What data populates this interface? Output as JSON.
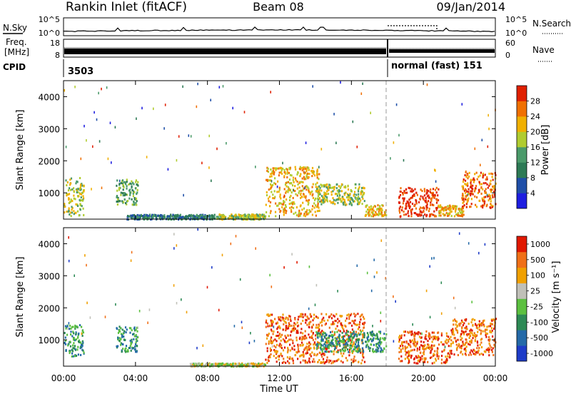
{
  "header": {
    "station": "Rankin Inlet (fitACF)",
    "beam": "Beam 08",
    "date": "09/Jan/2014"
  },
  "noise_panel": {
    "left_label": "N.Sky",
    "left_ticks": [
      "10^5",
      "10^0"
    ],
    "right_label": "N.Search",
    "right_ticks": [
      "10^5",
      "10^0"
    ]
  },
  "freq_panel": {
    "left_label_line1": "Freq.",
    "left_label_line2": "[MHz]",
    "left_ticks": [
      "18",
      "8"
    ],
    "right_label": "Nave",
    "right_ticks": [
      "60",
      "0"
    ]
  },
  "cpid_panel": {
    "label": "CPID",
    "segments": [
      {
        "text": "3503"
      },
      {
        "text": "normal (fast) 151"
      }
    ]
  },
  "x_axis": {
    "label": "Time UT",
    "tick_labels": [
      "00:00",
      "04:00",
      "08:00",
      "12:00",
      "16:00",
      "20:00",
      "00:00"
    ],
    "tick_hours": [
      0,
      4,
      8,
      12,
      16,
      20,
      24
    ]
  },
  "colors": {
    "power": [
      "#1e1ee0",
      "#1f4fa8",
      "#2d7a55",
      "#4a9a6a",
      "#b0cc30",
      "#f0b000",
      "#f07000",
      "#e02000"
    ],
    "velocity": [
      "#1e3cc8",
      "#246aa8",
      "#2d8a55",
      "#5cc040",
      "#c0c0b8",
      "#f0a000",
      "#f07018",
      "#e01800"
    ]
  },
  "chart_data": [
    {
      "type": "heatmap",
      "ylabel": "Slant Range [km]",
      "xlabel": "",
      "ylim": [
        180,
        4500
      ],
      "y_ticks": [
        "1000",
        "2000",
        "3000",
        "4000"
      ],
      "y_tick_values": [
        1000,
        2000,
        3000,
        4000
      ],
      "colorbar": {
        "label": "Power [dB]",
        "tick_labels": [
          "4",
          "8",
          "12",
          "16",
          "20",
          "24",
          "28"
        ]
      },
      "clusters": [
        {
          "t0": 0.0,
          "t1": 1.1,
          "r0": 300,
          "r1": 1500,
          "level": 4
        },
        {
          "t0": 2.9,
          "t1": 4.1,
          "r0": 650,
          "r1": 1450,
          "level": 3
        },
        {
          "t0": 3.5,
          "t1": 8.5,
          "r0": 200,
          "r1": 350,
          "level": 2
        },
        {
          "t0": 8.5,
          "t1": 11.2,
          "r0": 200,
          "r1": 360,
          "level": 4
        },
        {
          "t0": 11.2,
          "t1": 14.2,
          "r0": 300,
          "r1": 1850,
          "level": 5
        },
        {
          "t0": 14.0,
          "t1": 16.7,
          "r0": 650,
          "r1": 1300,
          "level": 4
        },
        {
          "t0": 16.7,
          "t1": 17.9,
          "r0": 300,
          "r1": 650,
          "level": 5
        },
        {
          "t0": 18.6,
          "t1": 20.8,
          "r0": 280,
          "r1": 1200,
          "level": 7
        },
        {
          "t0": 20.8,
          "t1": 22.2,
          "r0": 300,
          "r1": 650,
          "level": 5
        },
        {
          "t0": 22.1,
          "t1": 24.0,
          "r0": 550,
          "r1": 1700,
          "level": 6
        }
      ]
    },
    {
      "type": "heatmap",
      "ylabel": "Slant Range [km]",
      "xlabel": "Time UT",
      "ylim": [
        180,
        4500
      ],
      "y_ticks": [
        "1000",
        "2000",
        "3000",
        "4000"
      ],
      "y_tick_values": [
        1000,
        2000,
        3000,
        4000
      ],
      "colorbar": {
        "label": "Velocity [m s⁻¹]",
        "tick_labels": [
          "1000",
          "500",
          "100",
          "25",
          "-25",
          "-100",
          "-500",
          "-1000"
        ]
      },
      "clusters": [
        {
          "t0": 0.0,
          "t1": 1.1,
          "r0": 500,
          "r1": 1500,
          "level": 2
        },
        {
          "t0": 2.9,
          "t1": 4.1,
          "r0": 650,
          "r1": 1450,
          "level": 2
        },
        {
          "t0": 7.0,
          "t1": 11.2,
          "r0": 200,
          "r1": 300,
          "level": 4
        },
        {
          "t0": 11.2,
          "t1": 16.7,
          "r0": 300,
          "r1": 1850,
          "level": 6
        },
        {
          "t0": 14.0,
          "t1": 17.9,
          "r0": 650,
          "r1": 1300,
          "level": 2
        },
        {
          "t0": 18.6,
          "t1": 21.5,
          "r0": 300,
          "r1": 1300,
          "level": 6
        },
        {
          "t0": 21.5,
          "t1": 24.0,
          "r0": 550,
          "r1": 1700,
          "level": 6
        }
      ]
    }
  ]
}
